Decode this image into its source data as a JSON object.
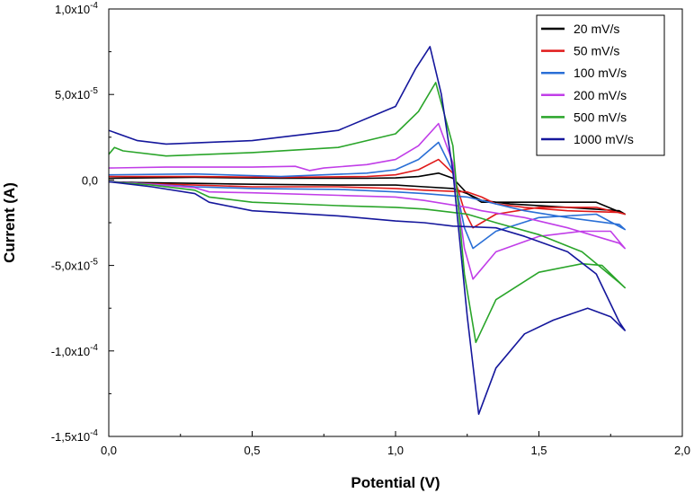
{
  "chart_data": {
    "type": "line",
    "title": "",
    "xlabel": "Potential (V)",
    "ylabel": "Current (A)",
    "xlim": [
      0.0,
      2.0
    ],
    "ylim": [
      -0.00015,
      0.0001
    ],
    "x_ticks": [
      {
        "value": 0.0,
        "label": "0,0"
      },
      {
        "value": 0.5,
        "label": "0,5"
      },
      {
        "value": 1.0,
        "label": "1,0"
      },
      {
        "value": 1.5,
        "label": "1,5"
      },
      {
        "value": 2.0,
        "label": "2,0"
      }
    ],
    "y_ticks": [
      {
        "value": 0.0001,
        "base": "1,0x10",
        "exp": "-4"
      },
      {
        "value": 5e-05,
        "base": "5,0x10",
        "exp": "-5"
      },
      {
        "value": 0.0,
        "base": "0,0",
        "exp": ""
      },
      {
        "value": -5e-05,
        "base": "-5,0x10",
        "exp": "-5"
      },
      {
        "value": -0.0001,
        "base": "-1,0x10",
        "exp": "-4"
      },
      {
        "value": -0.00015,
        "base": "-1,5x10",
        "exp": "-4"
      }
    ],
    "legend_position": "top-right",
    "series": [
      {
        "name": "20 mV/s",
        "color": "#000000",
        "points": [
          [
            0.0,
            1e-06
          ],
          [
            0.3,
            1.5e-06
          ],
          [
            0.6,
            1e-06
          ],
          [
            0.9,
            1e-06
          ],
          [
            1.0,
            1.2e-06
          ],
          [
            1.08,
            2e-06
          ],
          [
            1.15,
            4e-06
          ],
          [
            1.2,
            1e-06
          ],
          [
            1.25,
            -8e-06
          ],
          [
            1.3,
            -1.3e-05
          ],
          [
            1.35,
            -1.3e-05
          ],
          [
            1.5,
            -1.3e-05
          ],
          [
            1.7,
            -1.3e-05
          ],
          [
            1.8,
            -2e-05
          ],
          [
            1.78,
            -1.8e-05
          ],
          [
            1.6,
            -1.6e-05
          ],
          [
            1.4,
            -1.4e-05
          ],
          [
            1.3,
            -1.2e-05
          ],
          [
            1.25,
            -8e-06
          ],
          [
            1.2,
            -5e-06
          ],
          [
            1.1,
            -4e-06
          ],
          [
            1.0,
            -3e-06
          ],
          [
            0.8,
            -3e-06
          ],
          [
            0.5,
            -2.5e-06
          ],
          [
            0.3,
            -2e-06
          ],
          [
            0.1,
            -1.5e-06
          ],
          [
            0.0,
            -1e-06
          ]
        ]
      },
      {
        "name": "50 mV/s",
        "color": "#e01a1a",
        "points": [
          [
            0.0,
            2e-06
          ],
          [
            0.3,
            2e-06
          ],
          [
            0.6,
            1.5e-06
          ],
          [
            0.9,
            2e-06
          ],
          [
            1.0,
            3e-06
          ],
          [
            1.08,
            6e-06
          ],
          [
            1.15,
            1.2e-05
          ],
          [
            1.2,
            4e-06
          ],
          [
            1.24,
            -1.8e-05
          ],
          [
            1.27,
            -2.8e-05
          ],
          [
            1.35,
            -2e-05
          ],
          [
            1.5,
            -1.6e-05
          ],
          [
            1.7,
            -1.6e-05
          ],
          [
            1.8,
            -2e-05
          ],
          [
            1.78,
            -1.9e-05
          ],
          [
            1.6,
            -1.8e-05
          ],
          [
            1.45,
            -1.6e-05
          ],
          [
            1.35,
            -1.4e-05
          ],
          [
            1.3,
            -1e-05
          ],
          [
            1.25,
            -7e-06
          ],
          [
            1.1,
            -6e-06
          ],
          [
            1.0,
            -5e-06
          ],
          [
            0.8,
            -4e-06
          ],
          [
            0.5,
            -4e-06
          ],
          [
            0.3,
            -3e-06
          ],
          [
            0.1,
            -2e-06
          ],
          [
            0.0,
            -1e-06
          ]
        ]
      },
      {
        "name": "100 mV/s",
        "color": "#2a6fd6",
        "points": [
          [
            0.0,
            3e-06
          ],
          [
            0.3,
            3.5e-06
          ],
          [
            0.6,
            2e-06
          ],
          [
            0.9,
            4e-06
          ],
          [
            1.0,
            6e-06
          ],
          [
            1.08,
            1.2e-05
          ],
          [
            1.15,
            2.2e-05
          ],
          [
            1.2,
            5e-06
          ],
          [
            1.24,
            -2.8e-05
          ],
          [
            1.27,
            -4e-05
          ],
          [
            1.35,
            -3e-05
          ],
          [
            1.5,
            -2.2e-05
          ],
          [
            1.7,
            -2e-05
          ],
          [
            1.8,
            -2.9e-05
          ],
          [
            1.78,
            -2.6e-05
          ],
          [
            1.6,
            -2.2e-05
          ],
          [
            1.45,
            -1.8e-05
          ],
          [
            1.35,
            -1.4e-05
          ],
          [
            1.3,
            -1.2e-05
          ],
          [
            1.25,
            -1e-05
          ],
          [
            1.1,
            -8e-06
          ],
          [
            1.0,
            -7e-06
          ],
          [
            0.8,
            -5.5e-06
          ],
          [
            0.5,
            -5e-06
          ],
          [
            0.3,
            -4e-06
          ],
          [
            0.15,
            -2.5e-06
          ],
          [
            0.0,
            -1e-06
          ]
        ]
      },
      {
        "name": "200 mV/s",
        "color": "#c13ee8",
        "points": [
          [
            0.0,
            7e-06
          ],
          [
            0.2,
            7.5e-06
          ],
          [
            0.5,
            7.5e-06
          ],
          [
            0.65,
            8e-06
          ],
          [
            0.7,
            5.5e-06
          ],
          [
            0.75,
            7e-06
          ],
          [
            0.9,
            9e-06
          ],
          [
            1.0,
            1.2e-05
          ],
          [
            1.08,
            2e-05
          ],
          [
            1.15,
            3.3e-05
          ],
          [
            1.2,
            1e-05
          ],
          [
            1.24,
            -4e-05
          ],
          [
            1.27,
            -5.8e-05
          ],
          [
            1.35,
            -4.2e-05
          ],
          [
            1.5,
            -3.3e-05
          ],
          [
            1.65,
            -3e-05
          ],
          [
            1.75,
            -3e-05
          ],
          [
            1.8,
            -4e-05
          ],
          [
            1.78,
            -3.7e-05
          ],
          [
            1.6,
            -2.8e-05
          ],
          [
            1.45,
            -2.2e-05
          ],
          [
            1.3,
            -1.8e-05
          ],
          [
            1.25,
            -1.6e-05
          ],
          [
            1.1,
            -1.2e-05
          ],
          [
            1.0,
            -1e-05
          ],
          [
            0.8,
            -9e-06
          ],
          [
            0.5,
            -7.5e-06
          ],
          [
            0.35,
            -7e-06
          ],
          [
            0.3,
            -4.5e-06
          ],
          [
            0.15,
            -2.5e-06
          ],
          [
            0.0,
            -1e-06
          ]
        ]
      },
      {
        "name": "500 mV/s",
        "color": "#2aa52a",
        "points": [
          [
            0.0,
            1.5e-05
          ],
          [
            0.02,
            1.9e-05
          ],
          [
            0.05,
            1.7e-05
          ],
          [
            0.2,
            1.4e-05
          ],
          [
            0.5,
            1.6e-05
          ],
          [
            0.8,
            1.9e-05
          ],
          [
            1.0,
            2.7e-05
          ],
          [
            1.08,
            4e-05
          ],
          [
            1.14,
            5.7e-05
          ],
          [
            1.2,
            2e-05
          ],
          [
            1.24,
            -5.5e-05
          ],
          [
            1.28,
            -9.5e-05
          ],
          [
            1.35,
            -7e-05
          ],
          [
            1.5,
            -5.4e-05
          ],
          [
            1.65,
            -4.9e-05
          ],
          [
            1.72,
            -5e-05
          ],
          [
            1.8,
            -6.3e-05
          ],
          [
            1.78,
            -6e-05
          ],
          [
            1.65,
            -4.2e-05
          ],
          [
            1.5,
            -3.2e-05
          ],
          [
            1.35,
            -2.5e-05
          ],
          [
            1.25,
            -2e-05
          ],
          [
            1.1,
            -1.7e-05
          ],
          [
            1.0,
            -1.6e-05
          ],
          [
            0.8,
            -1.5e-05
          ],
          [
            0.5,
            -1.3e-05
          ],
          [
            0.35,
            -1e-05
          ],
          [
            0.3,
            -6e-06
          ],
          [
            0.15,
            -3e-06
          ],
          [
            0.0,
            -1e-06
          ]
        ]
      },
      {
        "name": "1000 mV/s",
        "color": "#15179c",
        "points": [
          [
            0.0,
            2.9e-05
          ],
          [
            0.1,
            2.3e-05
          ],
          [
            0.2,
            2.1e-05
          ],
          [
            0.5,
            2.3e-05
          ],
          [
            0.8,
            2.9e-05
          ],
          [
            1.0,
            4.3e-05
          ],
          [
            1.07,
            6.5e-05
          ],
          [
            1.12,
            7.8e-05
          ],
          [
            1.16,
            5e-05
          ],
          [
            1.2,
            5e-06
          ],
          [
            1.25,
            -8e-05
          ],
          [
            1.29,
            -0.000137
          ],
          [
            1.35,
            -0.00011
          ],
          [
            1.45,
            -9e-05
          ],
          [
            1.55,
            -8.2e-05
          ],
          [
            1.67,
            -7.5e-05
          ],
          [
            1.75,
            -8e-05
          ],
          [
            1.8,
            -8.8e-05
          ],
          [
            1.78,
            -8.3e-05
          ],
          [
            1.7,
            -5.5e-05
          ],
          [
            1.6,
            -4.2e-05
          ],
          [
            1.45,
            -3.3e-05
          ],
          [
            1.35,
            -2.8e-05
          ],
          [
            1.2,
            -2.7e-05
          ],
          [
            1.1,
            -2.5e-05
          ],
          [
            1.0,
            -2.4e-05
          ],
          [
            0.8,
            -2.1e-05
          ],
          [
            0.5,
            -1.8e-05
          ],
          [
            0.35,
            -1.3e-05
          ],
          [
            0.3,
            -8e-06
          ],
          [
            0.15,
            -4e-06
          ],
          [
            0.0,
            -1e-06
          ]
        ]
      }
    ]
  }
}
